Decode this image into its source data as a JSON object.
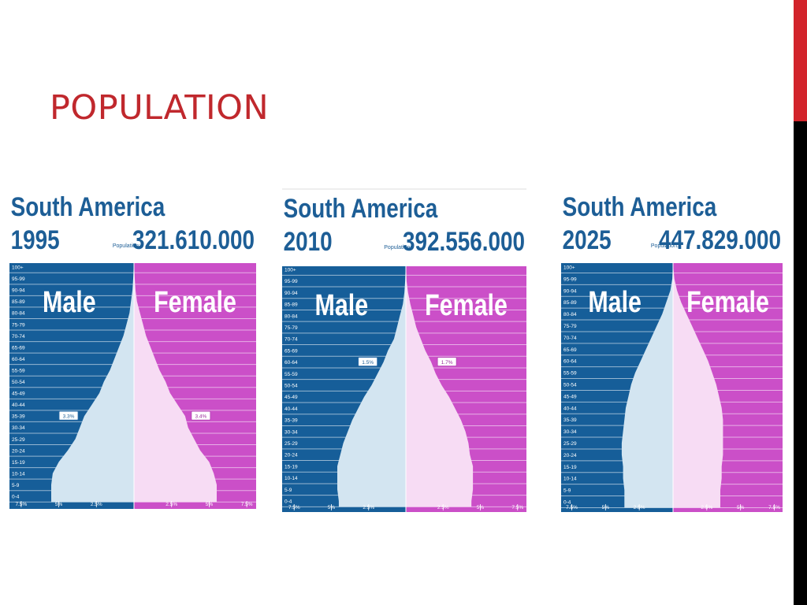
{
  "slide": {
    "title": "POPULATION"
  },
  "colors": {
    "male": "#165e99",
    "female": "#cb4fc8",
    "male_fill": "#d3e5f1",
    "female_fill": "#f7dcf4",
    "title": "#c0282d",
    "header_text": "#1d5e96"
  },
  "chart_data": [
    {
      "type": "bar",
      "region": "South America",
      "year": "1995",
      "population_label": "Population:",
      "population": "321.610.000",
      "male_label": "Male",
      "female_label": "Female",
      "age_groups": [
        "0-4",
        "5-9",
        "10-14",
        "15-19",
        "20-24",
        "25-29",
        "30-34",
        "35-39",
        "40-44",
        "45-49",
        "50-54",
        "55-59",
        "60-64",
        "65-69",
        "70-74",
        "75-79",
        "80-84",
        "85-89",
        "90-94",
        "95-99",
        "100+"
      ],
      "series": [
        {
          "name": "Male",
          "values": [
            5.5,
            5.5,
            5.4,
            5.0,
            4.4,
            3.9,
            3.6,
            3.3,
            2.8,
            2.3,
            2.0,
            1.6,
            1.3,
            1.0,
            0.7,
            0.5,
            0.3,
            0.2,
            0.1,
            0.05,
            0.02
          ]
        },
        {
          "name": "Female",
          "values": [
            5.5,
            5.5,
            5.3,
            5.0,
            4.4,
            4.0,
            3.6,
            3.4,
            2.9,
            2.4,
            2.1,
            1.7,
            1.4,
            1.1,
            0.8,
            0.6,
            0.4,
            0.2,
            0.1,
            0.05,
            0.02
          ]
        }
      ],
      "annotations": [
        {
          "age": "35-39",
          "male": "3.3%",
          "female": "3.4%"
        }
      ],
      "x_ticks": [
        "7.5%",
        "5%",
        "2.5%",
        "2.5%",
        "5%",
        "7.5%"
      ],
      "xlim": [
        -8.2,
        8.2
      ]
    },
    {
      "type": "bar",
      "region": "South America",
      "year": "2010",
      "population_label": "Population:",
      "population": "392.556.000",
      "male_label": "Male",
      "female_label": "Female",
      "age_groups": [
        "0-4",
        "5-9",
        "10-14",
        "15-19",
        "20-24",
        "25-29",
        "30-34",
        "35-39",
        "40-44",
        "45-49",
        "50-54",
        "55-59",
        "60-64",
        "65-69",
        "70-74",
        "75-79",
        "80-84",
        "85-89",
        "90-94",
        "95-99",
        "100+"
      ],
      "series": [
        {
          "name": "Male",
          "values": [
            4.5,
            4.6,
            4.6,
            4.6,
            4.4,
            4.2,
            3.9,
            3.6,
            3.2,
            2.8,
            2.3,
            1.9,
            1.5,
            1.2,
            0.8,
            0.6,
            0.4,
            0.2,
            0.1,
            0.05,
            0.02
          ]
        },
        {
          "name": "Female",
          "values": [
            4.4,
            4.5,
            4.5,
            4.5,
            4.3,
            4.2,
            4.0,
            3.7,
            3.3,
            2.9,
            2.4,
            2.0,
            1.7,
            1.3,
            1.0,
            0.7,
            0.5,
            0.3,
            0.15,
            0.05,
            0.02
          ]
        }
      ],
      "annotations": [
        {
          "age": "60-64",
          "male": "1.5%",
          "female": "1.7%"
        }
      ],
      "x_ticks": [
        "7.5%",
        "5%",
        "2.5%",
        "2.5%",
        "5%",
        "7.5%"
      ],
      "xlim": [
        -8.2,
        8.2
      ]
    },
    {
      "type": "bar",
      "region": "South America",
      "year": "2025",
      "population_label": "Population:",
      "population": "447.829.000",
      "male_label": "Male",
      "female_label": "Female",
      "age_groups": [
        "0-4",
        "5-9",
        "10-14",
        "15-19",
        "20-24",
        "25-29",
        "30-34",
        "35-39",
        "40-44",
        "45-49",
        "50-54",
        "55-59",
        "60-64",
        "65-69",
        "70-74",
        "75-79",
        "80-84",
        "85-89",
        "90-94",
        "95-99",
        "100+"
      ],
      "series": [
        {
          "name": "Male",
          "values": [
            3.6,
            3.6,
            3.7,
            3.7,
            3.8,
            3.8,
            3.7,
            3.6,
            3.5,
            3.3,
            3.1,
            2.8,
            2.4,
            2.0,
            1.6,
            1.2,
            0.8,
            0.5,
            0.2,
            0.05,
            0.02
          ]
        },
        {
          "name": "Female",
          "values": [
            3.5,
            3.5,
            3.6,
            3.6,
            3.7,
            3.7,
            3.7,
            3.7,
            3.6,
            3.4,
            3.2,
            2.9,
            2.6,
            2.2,
            1.8,
            1.4,
            1.0,
            0.6,
            0.3,
            0.1,
            0.02
          ]
        }
      ],
      "x_ticks": [
        "7.5%",
        "5%",
        "2.5%",
        "2.5%",
        "5%",
        "7.5%"
      ],
      "xlim": [
        -8.2,
        8.2
      ]
    }
  ]
}
